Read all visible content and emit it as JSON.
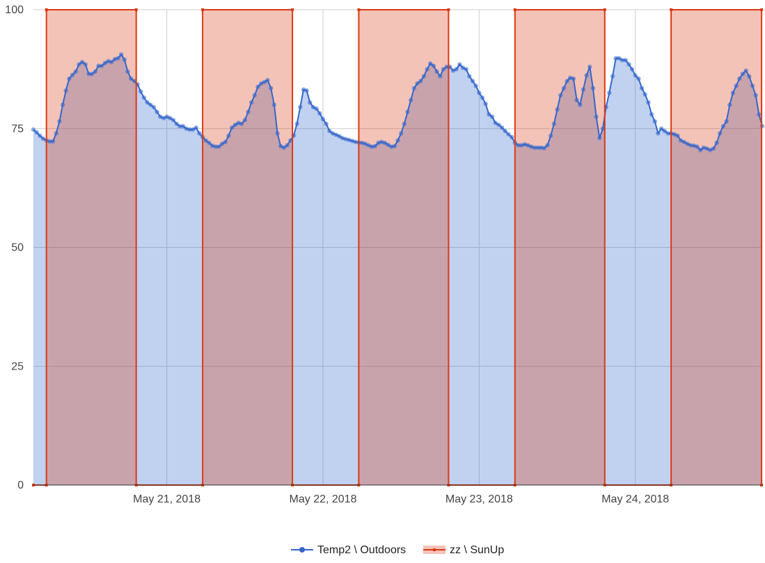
{
  "chart_data": {
    "type": "area",
    "title": "",
    "xlabel": "",
    "ylabel": "",
    "ylim": [
      0,
      100
    ],
    "y_ticks": [
      0,
      25,
      50,
      75,
      100
    ],
    "x_range_hours": [
      -0.5,
      111.5
    ],
    "x_ticks": [
      {
        "hour": 20,
        "label": "May 21, 2018"
      },
      {
        "hour": 44,
        "label": "May 22, 2018"
      },
      {
        "hour": 68,
        "label": "May 23, 2018"
      },
      {
        "hour": 92,
        "label": "May 24, 2018"
      }
    ],
    "grid": true,
    "legend": "bottom",
    "series": [
      {
        "name": "Temp2 \\ Outdoors",
        "color": "#3366cc",
        "fill": "#c3d1f0",
        "points": [
          [
            -0.5,
            74.8
          ],
          [
            0,
            74.2
          ],
          [
            0.5,
            73.5
          ],
          [
            1,
            72.9
          ],
          [
            1.5,
            72.5
          ],
          [
            2,
            72.3
          ],
          [
            2.5,
            72.3
          ],
          [
            3,
            74
          ],
          [
            3.5,
            76.5
          ],
          [
            4,
            80
          ],
          [
            4.5,
            83
          ],
          [
            5,
            85.5
          ],
          [
            5.5,
            86.3
          ],
          [
            6,
            87
          ],
          [
            6.5,
            88.5
          ],
          [
            7,
            89
          ],
          [
            7.5,
            88.5
          ],
          [
            8,
            86.5
          ],
          [
            8.5,
            86.5
          ],
          [
            9,
            87
          ],
          [
            9.5,
            88.2
          ],
          [
            10,
            88.2
          ],
          [
            10.5,
            88.8
          ],
          [
            11,
            89.2
          ],
          [
            11.5,
            89
          ],
          [
            12,
            89.6
          ],
          [
            12.5,
            89.8
          ],
          [
            13,
            90.6
          ],
          [
            13.5,
            89.5
          ],
          [
            14,
            87
          ],
          [
            14.5,
            85.5
          ],
          [
            15,
            85
          ],
          [
            15.5,
            84.3
          ],
          [
            16,
            82.8
          ],
          [
            16.5,
            81.5
          ],
          [
            17,
            80.5
          ],
          [
            17.5,
            80
          ],
          [
            18,
            79.5
          ],
          [
            18.5,
            78.5
          ],
          [
            19,
            77.5
          ],
          [
            19.5,
            77.2
          ],
          [
            20,
            77.5
          ],
          [
            20.5,
            77.2
          ],
          [
            21,
            76.8
          ],
          [
            21.5,
            76
          ],
          [
            22,
            75.5
          ],
          [
            22.5,
            75.5
          ],
          [
            23,
            75
          ],
          [
            23.5,
            74.8
          ],
          [
            24,
            74.8
          ],
          [
            24.5,
            75.2
          ],
          [
            25,
            74
          ],
          [
            25.5,
            73.2
          ],
          [
            26,
            72.5
          ],
          [
            26.5,
            72
          ],
          [
            27,
            71.4
          ],
          [
            27.5,
            71.2
          ],
          [
            28,
            71.2
          ],
          [
            28.5,
            71.8
          ],
          [
            29,
            72.2
          ],
          [
            29.5,
            73.5
          ],
          [
            30,
            75.2
          ],
          [
            30.5,
            75.8
          ],
          [
            31,
            76.2
          ],
          [
            31.5,
            76
          ],
          [
            32,
            76.8
          ],
          [
            32.5,
            78.5
          ],
          [
            33,
            80.5
          ],
          [
            33.5,
            82
          ],
          [
            34,
            83.8
          ],
          [
            34.5,
            84.5
          ],
          [
            35,
            84.8
          ],
          [
            35.5,
            85.2
          ],
          [
            36,
            83.5
          ],
          [
            36.5,
            80
          ],
          [
            37,
            74
          ],
          [
            37.5,
            71.3
          ],
          [
            38,
            71
          ],
          [
            38.5,
            71.5
          ],
          [
            39,
            72.5
          ],
          [
            39.5,
            73.5
          ],
          [
            40,
            76
          ],
          [
            40.5,
            79.5
          ],
          [
            41,
            83.2
          ],
          [
            41.5,
            83
          ],
          [
            42,
            80.5
          ],
          [
            42.5,
            79.5
          ],
          [
            43,
            79.2
          ],
          [
            43.5,
            78.2
          ],
          [
            44,
            77
          ],
          [
            44.5,
            76
          ],
          [
            45,
            74.5
          ],
          [
            45.5,
            74
          ],
          [
            46,
            73.7
          ],
          [
            46.5,
            73.4
          ],
          [
            47,
            73
          ],
          [
            47.5,
            72.8
          ],
          [
            48,
            72.6
          ],
          [
            48.5,
            72.4
          ],
          [
            49,
            72.2
          ],
          [
            49.5,
            72.1
          ],
          [
            50,
            72
          ],
          [
            50.5,
            71.8
          ],
          [
            51,
            71.5
          ],
          [
            51.5,
            71.2
          ],
          [
            52,
            71.3
          ],
          [
            52.5,
            72
          ],
          [
            53,
            72.2
          ],
          [
            53.5,
            72
          ],
          [
            54,
            71.6
          ],
          [
            54.5,
            71.2
          ],
          [
            55,
            71.3
          ],
          [
            55.5,
            72.5
          ],
          [
            56,
            74
          ],
          [
            56.5,
            76
          ],
          [
            57,
            78.5
          ],
          [
            57.5,
            81
          ],
          [
            58,
            83.5
          ],
          [
            58.5,
            84.5
          ],
          [
            59,
            85
          ],
          [
            59.5,
            86
          ],
          [
            60,
            87.5
          ],
          [
            60.5,
            88.7
          ],
          [
            61,
            88.2
          ],
          [
            61.5,
            87
          ],
          [
            62,
            86
          ],
          [
            62.5,
            87.5
          ],
          [
            63,
            88
          ],
          [
            63.5,
            88
          ],
          [
            64,
            87.2
          ],
          [
            64.5,
            87.5
          ],
          [
            65,
            88.5
          ],
          [
            65.5,
            87.8
          ],
          [
            66,
            87.5
          ],
          [
            66.5,
            86
          ],
          [
            67,
            85
          ],
          [
            67.5,
            84
          ],
          [
            68,
            82.5
          ],
          [
            68.5,
            81.5
          ],
          [
            69,
            80.2
          ],
          [
            69.5,
            78
          ],
          [
            70,
            77.5
          ],
          [
            70.5,
            76.2
          ],
          [
            71,
            75.8
          ],
          [
            71.5,
            75.2
          ],
          [
            72,
            74.5
          ],
          [
            72.5,
            73.8
          ],
          [
            73,
            73.2
          ],
          [
            73.5,
            72
          ],
          [
            74,
            71.5
          ],
          [
            74.5,
            71.5
          ],
          [
            75,
            71.7
          ],
          [
            75.5,
            71.5
          ],
          [
            76,
            71.2
          ],
          [
            76.5,
            71
          ],
          [
            77,
            71
          ],
          [
            77.5,
            71
          ],
          [
            78,
            70.9
          ],
          [
            78.5,
            71.5
          ],
          [
            79,
            73.5
          ],
          [
            79.5,
            76
          ],
          [
            80,
            79
          ],
          [
            80.5,
            82
          ],
          [
            81,
            83.5
          ],
          [
            81.5,
            85
          ],
          [
            82,
            85.7
          ],
          [
            82.5,
            85.5
          ],
          [
            83,
            81
          ],
          [
            83.5,
            80
          ],
          [
            84,
            83.2
          ],
          [
            84.5,
            86.2
          ],
          [
            85,
            88
          ],
          [
            85.5,
            83.5
          ],
          [
            86,
            77.5
          ],
          [
            86.5,
            73
          ],
          [
            87,
            75
          ],
          [
            87.5,
            79.5
          ],
          [
            88,
            82.5
          ],
          [
            88.5,
            86
          ],
          [
            89,
            89.8
          ],
          [
            89.5,
            89.8
          ],
          [
            90,
            89.4
          ],
          [
            90.5,
            89.4
          ],
          [
            91,
            88.5
          ],
          [
            91.5,
            87.5
          ],
          [
            92,
            86.2
          ],
          [
            92.5,
            85.5
          ],
          [
            93,
            83.5
          ],
          [
            93.5,
            82.2
          ],
          [
            94,
            80.5
          ],
          [
            94.5,
            78
          ],
          [
            95,
            76.5
          ],
          [
            95.5,
            74
          ],
          [
            96,
            75
          ],
          [
            96.5,
            74.5
          ],
          [
            97,
            74
          ],
          [
            97.5,
            74
          ],
          [
            98,
            73.8
          ],
          [
            98.5,
            73.5
          ],
          [
            99,
            72.5
          ],
          [
            99.5,
            72.2
          ],
          [
            100,
            71.8
          ],
          [
            100.5,
            71.5
          ],
          [
            101,
            71.4
          ],
          [
            101.5,
            71.2
          ],
          [
            102,
            70.5
          ],
          [
            102.5,
            71
          ],
          [
            103,
            70.8
          ],
          [
            103.5,
            70.5
          ],
          [
            104,
            70.8
          ],
          [
            104.5,
            72
          ],
          [
            105,
            74
          ],
          [
            105.5,
            75.5
          ],
          [
            106,
            76.5
          ],
          [
            106.5,
            80
          ],
          [
            107,
            82.5
          ],
          [
            107.5,
            84
          ],
          [
            108,
            85.5
          ],
          [
            108.5,
            86.5
          ],
          [
            109,
            87.2
          ],
          [
            109.5,
            86
          ],
          [
            110,
            84
          ],
          [
            110.5,
            82
          ],
          [
            111,
            78
          ],
          [
            111.5,
            75.5
          ]
        ]
      },
      {
        "name": "zz \\ SunUp",
        "color": "#dc3912",
        "fill": "#f3c0b1",
        "points": [
          [
            -0.5,
            0
          ],
          [
            1.5,
            0
          ],
          [
            1.5,
            100
          ],
          [
            15.3,
            100
          ],
          [
            15.3,
            0
          ],
          [
            25.5,
            0
          ],
          [
            25.5,
            100
          ],
          [
            39.3,
            100
          ],
          [
            39.3,
            0
          ],
          [
            49.5,
            0
          ],
          [
            49.5,
            100
          ],
          [
            63.3,
            100
          ],
          [
            63.3,
            0
          ],
          [
            73.5,
            0
          ],
          [
            73.5,
            100
          ],
          [
            87.3,
            100
          ],
          [
            87.3,
            0
          ],
          [
            97.5,
            0
          ],
          [
            97.5,
            100
          ],
          [
            111.4,
            100
          ],
          [
            111.4,
            0
          ]
        ]
      }
    ]
  }
}
